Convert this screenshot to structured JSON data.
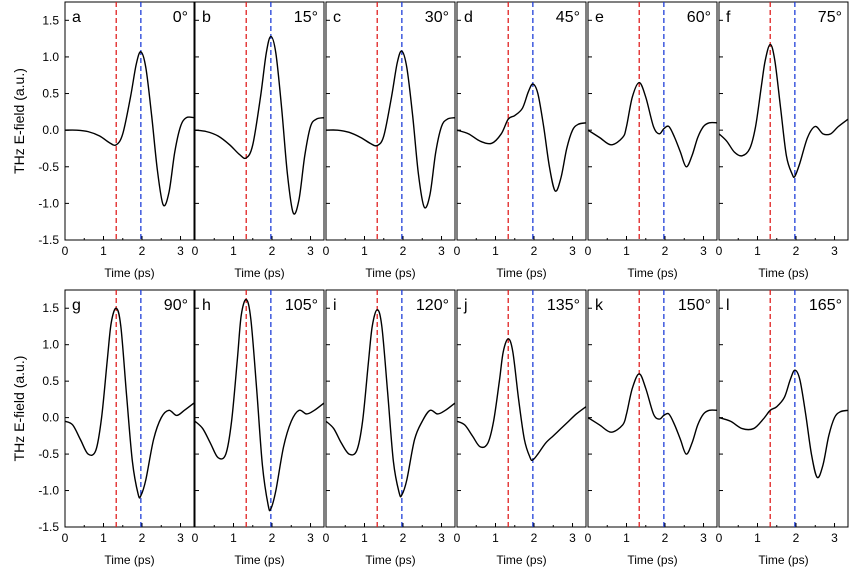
{
  "chart_data": {
    "type": "line",
    "ylabel": "THz E-field (a.u.)",
    "xlabel": "Time (ps)",
    "xlim": [
      0,
      3.35
    ],
    "ylim": [
      -1.5,
      1.75
    ],
    "x_ticks": [
      "0",
      "1",
      "2",
      "3"
    ],
    "y_ticks": [
      "-1.5",
      "-1.0",
      "-0.5",
      "0.0",
      "0.5",
      "1.0",
      "1.5"
    ],
    "reference_lines": [
      {
        "x": 1.33,
        "color": "#e02020",
        "style": "dashed"
      },
      {
        "x": 1.97,
        "color": "#1f3fd8",
        "style": "dashed"
      }
    ],
    "line_color": "#000000",
    "panels": [
      {
        "letter": "a",
        "angle": "0°",
        "series": {
          "x": [
            0,
            0.3,
            0.6,
            0.9,
            1.15,
            1.33,
            1.5,
            1.7,
            1.85,
            1.97,
            2.1,
            2.25,
            2.4,
            2.55,
            2.7,
            2.85,
            3.0,
            3.15,
            3.35
          ],
          "y": [
            0.0,
            0.0,
            -0.02,
            -0.08,
            -0.17,
            -0.2,
            -0.05,
            0.45,
            0.9,
            1.07,
            0.85,
            0.2,
            -0.55,
            -1.02,
            -0.85,
            -0.3,
            0.05,
            0.17,
            0.17
          ]
        }
      },
      {
        "letter": "b",
        "angle": "15°",
        "series": {
          "x": [
            0,
            0.3,
            0.6,
            0.9,
            1.15,
            1.33,
            1.5,
            1.7,
            1.85,
            1.97,
            2.1,
            2.25,
            2.4,
            2.55,
            2.7,
            2.85,
            3.0,
            3.15,
            3.35
          ],
          "y": [
            0.0,
            -0.02,
            -0.08,
            -0.2,
            -0.33,
            -0.38,
            -0.2,
            0.45,
            1.05,
            1.28,
            1.05,
            0.3,
            -0.6,
            -1.13,
            -0.95,
            -0.35,
            0.05,
            0.15,
            0.17
          ]
        }
      },
      {
        "letter": "c",
        "angle": "30°",
        "series": {
          "x": [
            0,
            0.3,
            0.6,
            0.9,
            1.15,
            1.33,
            1.5,
            1.7,
            1.85,
            1.97,
            2.1,
            2.25,
            2.4,
            2.55,
            2.7,
            2.85,
            3.0,
            3.15,
            3.35
          ],
          "y": [
            0.0,
            0.0,
            -0.03,
            -0.1,
            -0.18,
            -0.21,
            -0.08,
            0.45,
            0.92,
            1.08,
            0.85,
            0.2,
            -0.6,
            -1.05,
            -0.88,
            -0.3,
            0.05,
            0.15,
            0.17
          ]
        }
      },
      {
        "letter": "d",
        "angle": "45°",
        "series": {
          "x": [
            0,
            0.3,
            0.6,
            0.9,
            1.15,
            1.33,
            1.5,
            1.7,
            1.85,
            1.97,
            2.1,
            2.25,
            2.4,
            2.55,
            2.7,
            2.85,
            3.0,
            3.15,
            3.35
          ],
          "y": [
            0.0,
            -0.05,
            -0.15,
            -0.18,
            -0.05,
            0.15,
            0.2,
            0.3,
            0.52,
            0.63,
            0.5,
            0.05,
            -0.5,
            -0.83,
            -0.65,
            -0.25,
            0.0,
            0.08,
            0.1
          ]
        }
      },
      {
        "letter": "e",
        "angle": "60°",
        "series": {
          "x": [
            0,
            0.3,
            0.6,
            0.9,
            1.0,
            1.15,
            1.33,
            1.5,
            1.7,
            1.85,
            1.97,
            2.1,
            2.25,
            2.4,
            2.55,
            2.7,
            2.85,
            3.0,
            3.15,
            3.35
          ],
          "y": [
            0.0,
            -0.1,
            -0.2,
            -0.1,
            0.05,
            0.45,
            0.65,
            0.45,
            0.05,
            -0.05,
            0.02,
            0.05,
            -0.1,
            -0.3,
            -0.5,
            -0.35,
            -0.1,
            0.05,
            0.1,
            0.1
          ]
        }
      },
      {
        "letter": "f",
        "angle": "75°",
        "series": {
          "x": [
            0,
            0.2,
            0.4,
            0.6,
            0.8,
            0.95,
            1.1,
            1.2,
            1.33,
            1.45,
            1.6,
            1.75,
            1.9,
            1.97,
            2.1,
            2.3,
            2.5,
            2.7,
            2.9,
            3.1,
            3.35
          ],
          "y": [
            -0.05,
            -0.15,
            -0.3,
            -0.35,
            -0.25,
            0.05,
            0.6,
            0.95,
            1.17,
            0.95,
            0.3,
            -0.35,
            -0.6,
            -0.63,
            -0.45,
            -0.1,
            0.05,
            -0.05,
            -0.05,
            0.05,
            0.15
          ]
        }
      },
      {
        "letter": "g",
        "angle": "90°",
        "series": {
          "x": [
            0,
            0.2,
            0.4,
            0.6,
            0.8,
            0.95,
            1.1,
            1.2,
            1.33,
            1.45,
            1.6,
            1.75,
            1.9,
            1.97,
            2.1,
            2.3,
            2.5,
            2.7,
            2.9,
            3.1,
            3.35
          ],
          "y": [
            -0.05,
            -0.1,
            -0.3,
            -0.5,
            -0.45,
            0.0,
            0.8,
            1.3,
            1.5,
            1.25,
            0.3,
            -0.6,
            -1.05,
            -1.07,
            -0.85,
            -0.3,
            0.0,
            0.1,
            0.03,
            0.1,
            0.2
          ]
        }
      },
      {
        "letter": "h",
        "angle": "105°",
        "series": {
          "x": [
            0,
            0.2,
            0.4,
            0.6,
            0.8,
            0.95,
            1.1,
            1.2,
            1.33,
            1.45,
            1.6,
            1.75,
            1.9,
            1.97,
            2.1,
            2.3,
            2.5,
            2.7,
            2.9,
            3.1,
            3.35
          ],
          "y": [
            -0.05,
            -0.15,
            -0.35,
            -0.55,
            -0.5,
            -0.05,
            0.8,
            1.4,
            1.62,
            1.35,
            0.4,
            -0.65,
            -1.2,
            -1.25,
            -1.0,
            -0.4,
            -0.05,
            0.1,
            0.05,
            0.1,
            0.2
          ]
        }
      },
      {
        "letter": "i",
        "angle": "120°",
        "series": {
          "x": [
            0,
            0.2,
            0.4,
            0.6,
            0.8,
            0.95,
            1.1,
            1.2,
            1.33,
            1.45,
            1.6,
            1.75,
            1.9,
            1.97,
            2.1,
            2.3,
            2.5,
            2.7,
            2.9,
            3.1,
            3.35
          ],
          "y": [
            -0.05,
            -0.15,
            -0.35,
            -0.5,
            -0.45,
            -0.05,
            0.75,
            1.25,
            1.48,
            1.25,
            0.35,
            -0.6,
            -1.03,
            -1.06,
            -0.85,
            -0.3,
            -0.05,
            0.1,
            0.05,
            0.1,
            0.2
          ]
        }
      },
      {
        "letter": "j",
        "angle": "135°",
        "series": {
          "x": [
            0,
            0.2,
            0.4,
            0.6,
            0.8,
            0.95,
            1.1,
            1.2,
            1.33,
            1.45,
            1.6,
            1.75,
            1.9,
            1.97,
            2.1,
            2.3,
            2.5,
            2.7,
            2.9,
            3.1,
            3.35
          ],
          "y": [
            -0.05,
            -0.1,
            -0.25,
            -0.4,
            -0.35,
            -0.05,
            0.5,
            0.9,
            1.08,
            0.9,
            0.25,
            -0.3,
            -0.55,
            -0.58,
            -0.5,
            -0.35,
            -0.25,
            -0.15,
            -0.05,
            0.05,
            0.15
          ]
        }
      },
      {
        "letter": "k",
        "angle": "150°",
        "series": {
          "x": [
            0,
            0.3,
            0.6,
            0.9,
            1.0,
            1.15,
            1.33,
            1.5,
            1.7,
            1.85,
            1.97,
            2.1,
            2.25,
            2.4,
            2.55,
            2.7,
            2.85,
            3.0,
            3.15,
            3.35
          ],
          "y": [
            0.0,
            -0.1,
            -0.2,
            -0.1,
            0.05,
            0.4,
            0.6,
            0.4,
            0.05,
            -0.02,
            0.03,
            0.05,
            -0.1,
            -0.3,
            -0.5,
            -0.35,
            -0.1,
            0.05,
            0.1,
            0.1
          ]
        }
      },
      {
        "letter": "l",
        "angle": "165°",
        "series": {
          "x": [
            0,
            0.3,
            0.6,
            0.9,
            1.15,
            1.33,
            1.5,
            1.7,
            1.85,
            1.97,
            2.1,
            2.25,
            2.4,
            2.55,
            2.7,
            2.85,
            3.0,
            3.15,
            3.35
          ],
          "y": [
            0.0,
            -0.05,
            -0.15,
            -0.15,
            -0.02,
            0.1,
            0.15,
            0.28,
            0.52,
            0.65,
            0.52,
            0.05,
            -0.5,
            -0.82,
            -0.65,
            -0.25,
            0.0,
            0.08,
            0.1
          ]
        }
      }
    ]
  }
}
